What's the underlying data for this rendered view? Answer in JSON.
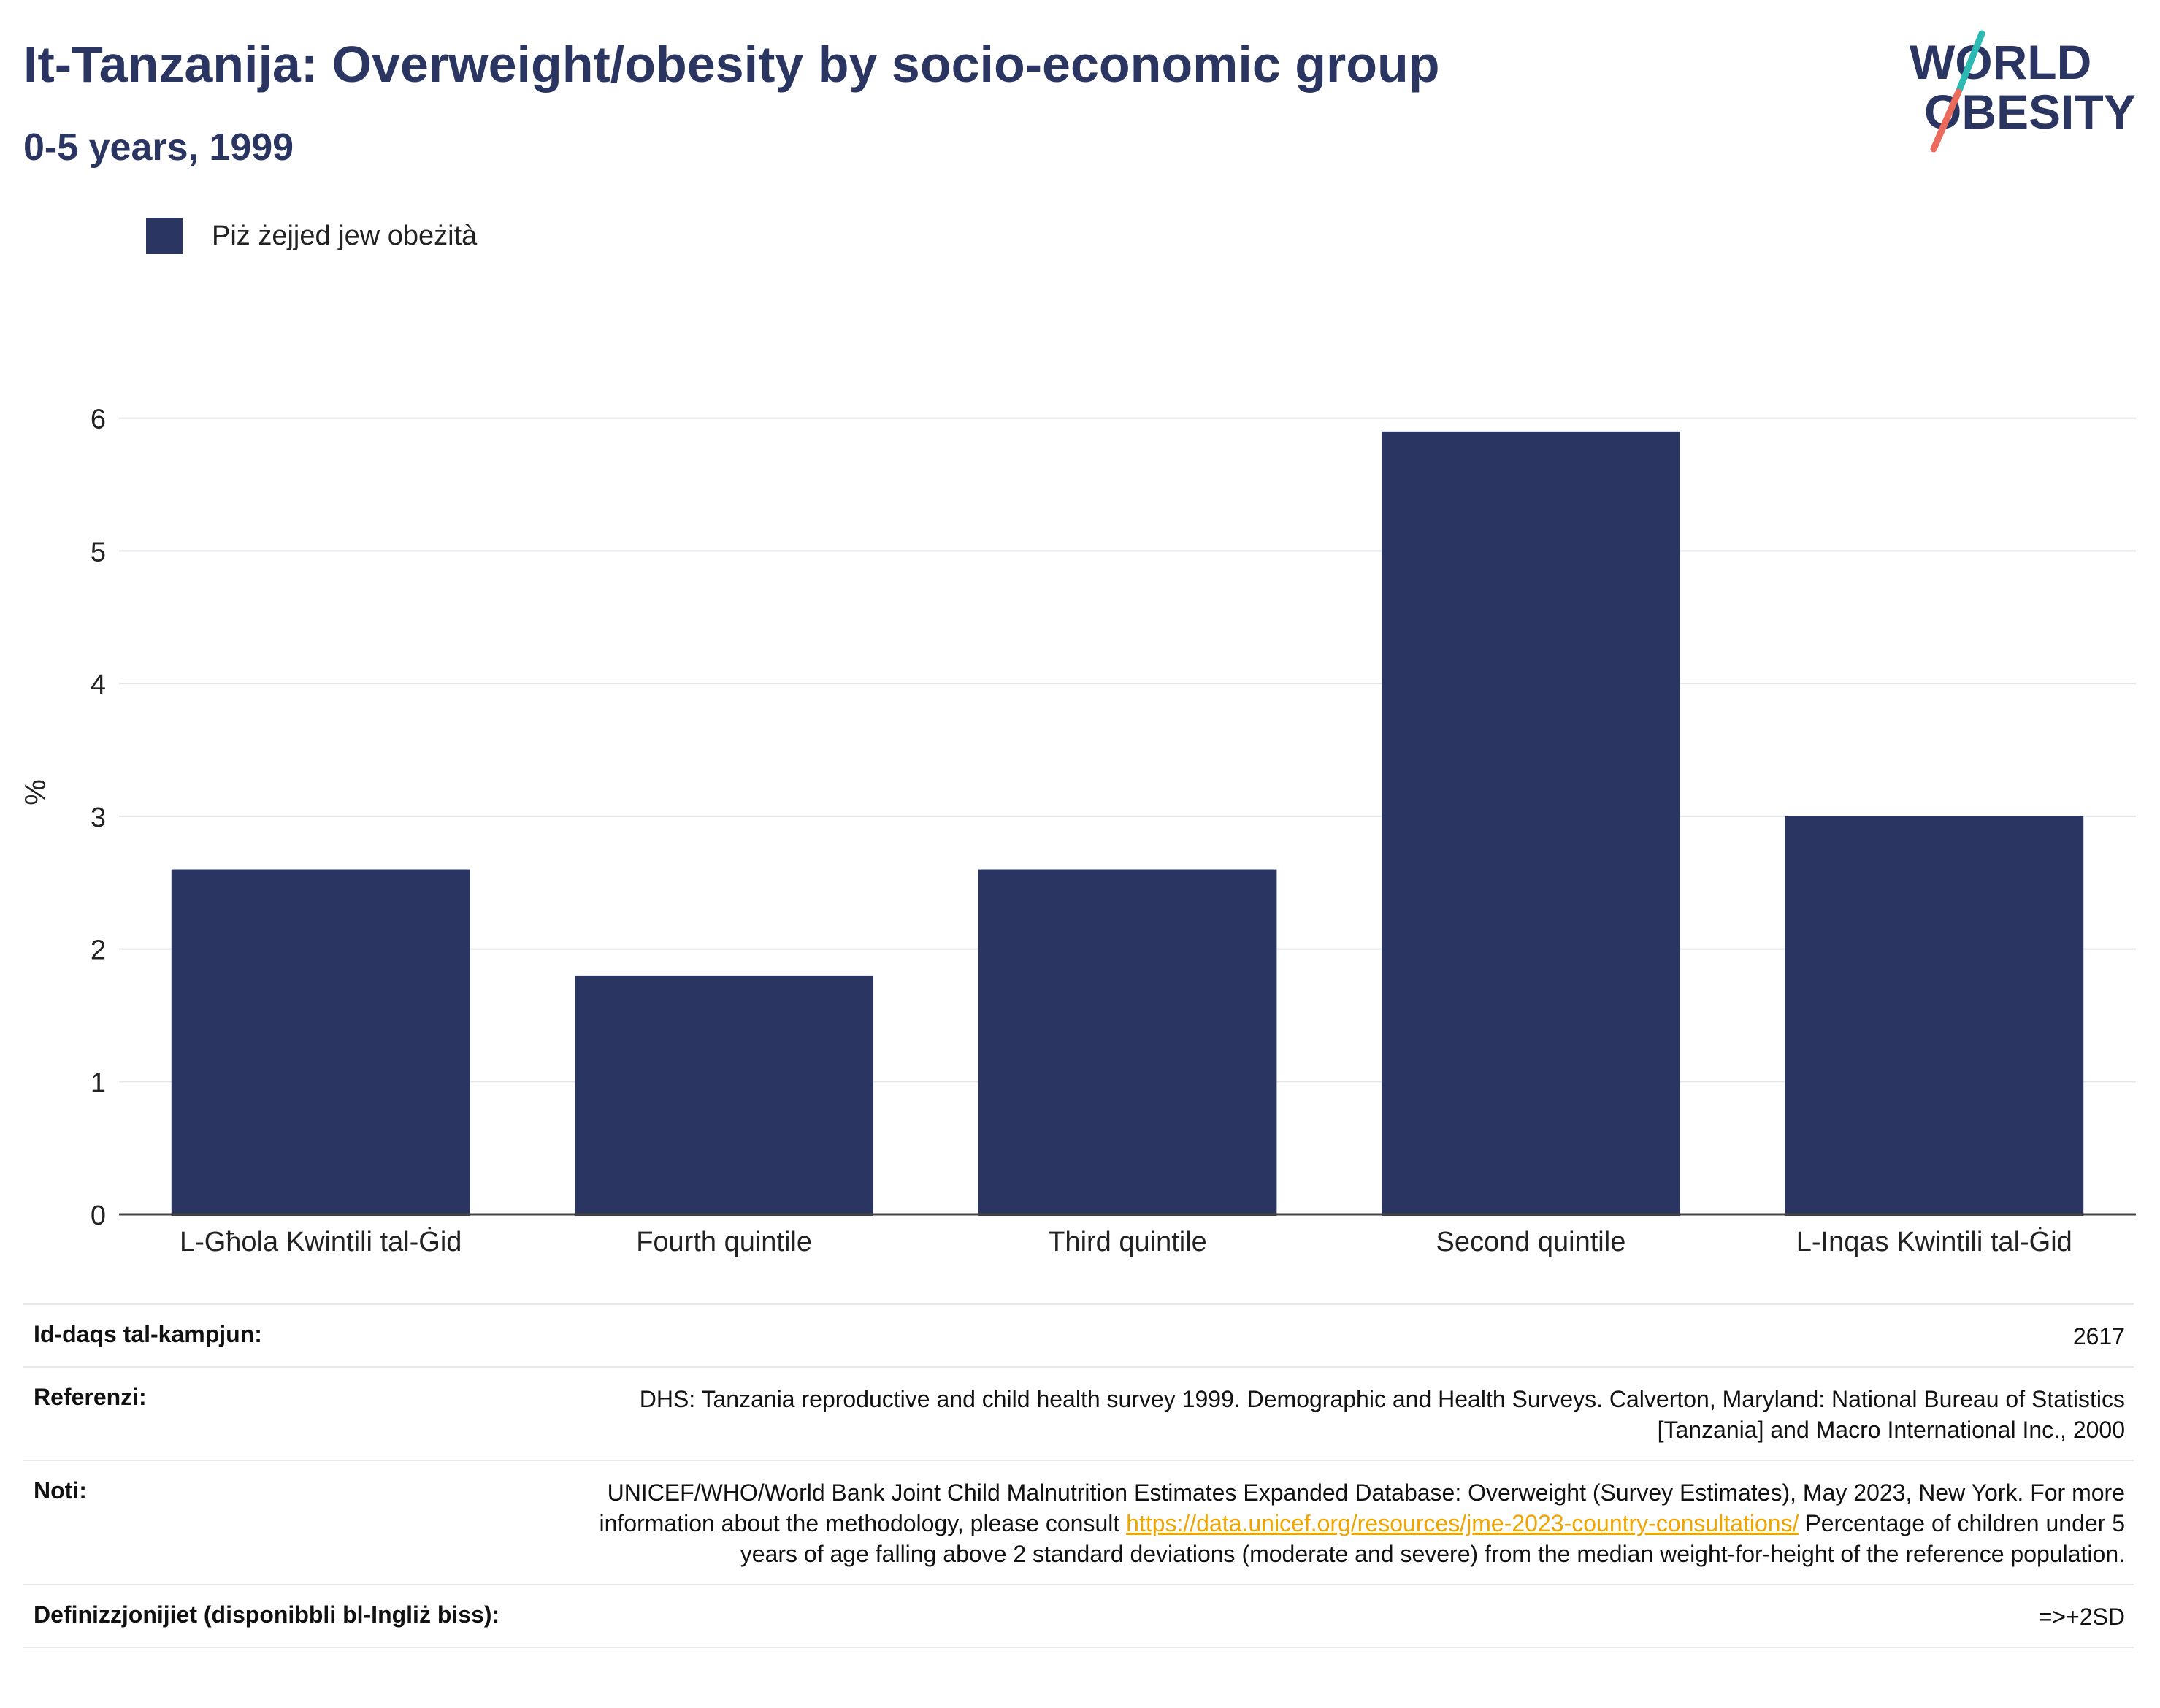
{
  "header": {
    "title": "It-Tanzanija: Overweight/obesity by socio-economic group",
    "subtitle": "0-5 years, 1999"
  },
  "logo": {
    "line1": "WORLD",
    "line2": "OBESITY",
    "accent_teal": "#2bbbb2",
    "accent_coral": "#ec6a5c",
    "text_color": "#2a3561"
  },
  "legend": {
    "label": "Piż żejjed jew obeżità",
    "color": "#2a3561"
  },
  "chart_data": {
    "type": "bar",
    "categories": [
      "L-Għola Kwintili tal-Ġid",
      "Fourth quintile",
      "Third quintile",
      "Second quintile",
      "L-Inqas Kwintili tal-Ġid"
    ],
    "series": [
      {
        "name": "Piż żejjed jew obeżità",
        "values": [
          2.6,
          1.8,
          2.6,
          5.9,
          3.0
        ],
        "color": "#2a3561"
      }
    ],
    "ylabel": "%",
    "ylim": [
      0,
      6.4
    ],
    "yticks": [
      0,
      1,
      2,
      3,
      4,
      5,
      6
    ],
    "grid": true
  },
  "meta": {
    "sample_size": {
      "label": "Id-daqs tal-kampjun:",
      "value": "2617"
    },
    "references": {
      "label": "Referenzi:",
      "value": "DHS: Tanzania reproductive and child health survey 1999. Demographic and Health Surveys. Calverton, Maryland: National Bureau of Statistics [Tanzania] and Macro International Inc., 2000"
    },
    "notes": {
      "label": "Noti:",
      "text1": "UNICEF/WHO/World Bank Joint Child Malnutrition Estimates Expanded Database: Overweight (Survey Estimates), May 2023, New York. For more information about the methodology, please consult ",
      "link": "https://data.unicef.org/resources/jme-2023-country-consultations/",
      "text2": " Percentage of children under 5 years of age falling above 2 standard deviations (moderate and severe) from the median weight-for-height of the reference population."
    },
    "definitions": {
      "label": "Definizzjonijiet (disponibbli bl-Ingliż biss):",
      "value": "=>+2SD"
    }
  }
}
